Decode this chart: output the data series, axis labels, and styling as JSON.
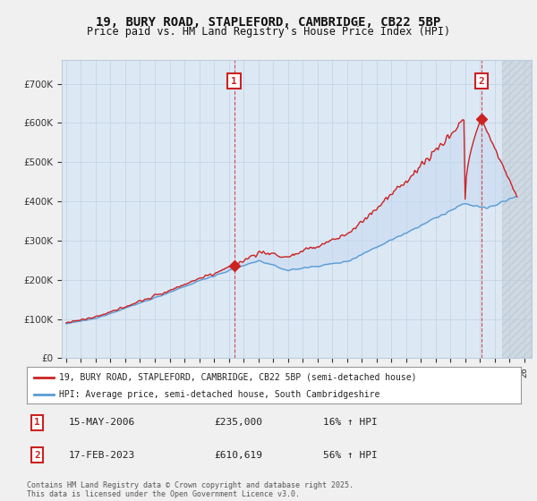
{
  "title": "19, BURY ROAD, STAPLEFORD, CAMBRIDGE, CB22 5BP",
  "subtitle": "Price paid vs. HM Land Registry's House Price Index (HPI)",
  "ytick_vals": [
    0,
    100000,
    200000,
    300000,
    400000,
    500000,
    600000,
    700000
  ],
  "ylim": [
    0,
    760000
  ],
  "xlim_start": 1994.7,
  "xlim_end": 2026.5,
  "xticks": [
    1995,
    1996,
    1997,
    1998,
    1999,
    2000,
    2001,
    2002,
    2003,
    2004,
    2005,
    2006,
    2007,
    2008,
    2009,
    2010,
    2011,
    2012,
    2013,
    2014,
    2015,
    2016,
    2017,
    2018,
    2019,
    2020,
    2021,
    2022,
    2023,
    2024,
    2025,
    2026
  ],
  "hpi_color": "#5b9bd5",
  "price_color": "#cc2222",
  "fill_color": "#c5d9f0",
  "plot_bg_color": "#dce9f5",
  "sale1_x": 2006.37,
  "sale1_y": 235000,
  "sale2_x": 2023.12,
  "sale2_y": 610619,
  "vline1_x": 2006.37,
  "vline2_x": 2023.12,
  "hatch_start": 2024.5,
  "legend_price": "19, BURY ROAD, STAPLEFORD, CAMBRIDGE, CB22 5BP (semi-detached house)",
  "legend_hpi": "HPI: Average price, semi-detached house, South Cambridgeshire",
  "annot1_date": "15-MAY-2006",
  "annot1_price": "£235,000",
  "annot1_hpi": "16% ↑ HPI",
  "annot2_date": "17-FEB-2023",
  "annot2_price": "£610,619",
  "annot2_hpi": "56% ↑ HPI",
  "footer": "Contains HM Land Registry data © Crown copyright and database right 2025.\nThis data is licensed under the Open Government Licence v3.0.",
  "bg_color": "#f0f0f0",
  "grid_color": "#bbccdd",
  "title_fontsize": 10,
  "subtitle_fontsize": 8.5
}
